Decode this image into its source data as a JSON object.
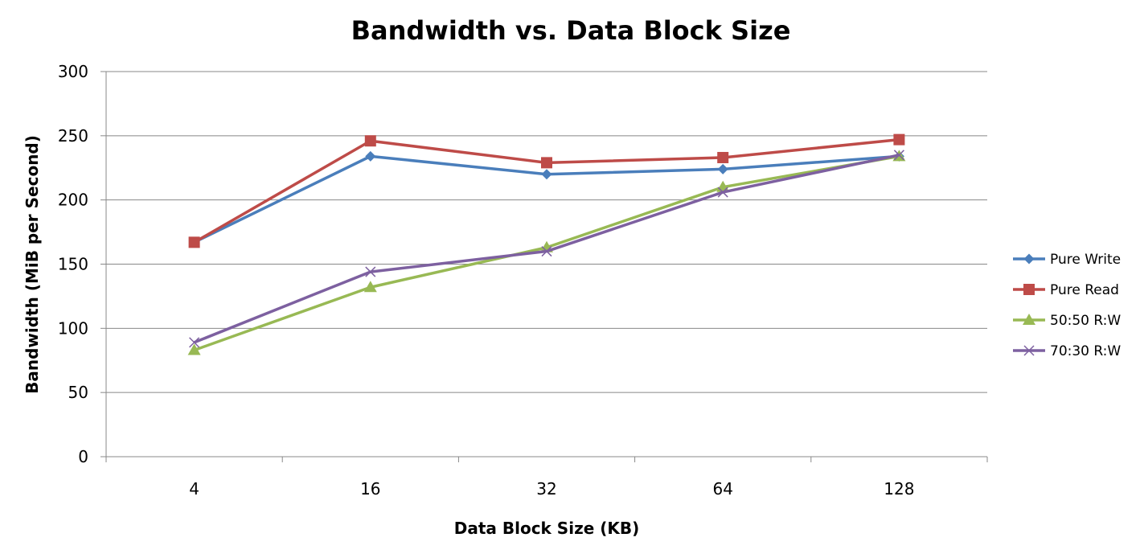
{
  "chart_data": {
    "type": "line",
    "title": "Bandwidth vs. Data Block Size",
    "xlabel": "Data Block Size (KB)",
    "ylabel": "Bandwidth (MiB per Second)",
    "categories": [
      "4",
      "16",
      "32",
      "64",
      "128"
    ],
    "ylim": [
      0,
      300
    ],
    "yticks": [
      0,
      50,
      100,
      150,
      200,
      250,
      300
    ],
    "grid": true,
    "legend_position": "right",
    "series": [
      {
        "name": "Pure Write",
        "values": [
          167,
          234,
          220,
          224,
          234
        ],
        "color": "#4A7EBB",
        "marker": "diamond"
      },
      {
        "name": "Pure Read",
        "values": [
          167,
          246,
          229,
          233,
          247
        ],
        "color": "#BE4B48",
        "marker": "square"
      },
      {
        "name": "50:50 R:W",
        "values": [
          83,
          132,
          163,
          210,
          234
        ],
        "color": "#98B954",
        "marker": "triangle"
      },
      {
        "name": "70:30 R:W",
        "values": [
          89,
          144,
          160,
          206,
          235
        ],
        "color": "#7D60A0",
        "marker": "x"
      }
    ]
  }
}
